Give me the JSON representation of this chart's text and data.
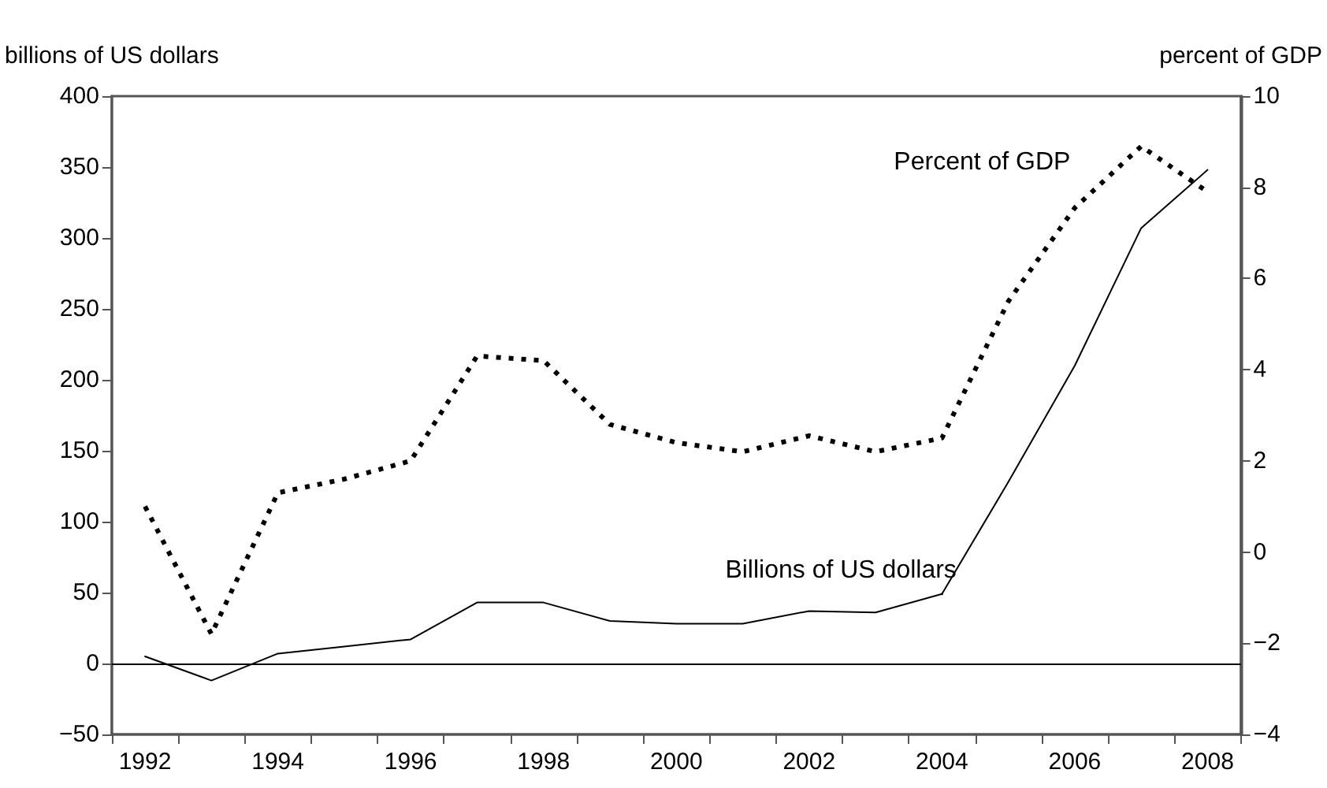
{
  "chart_data": {
    "type": "line",
    "xlabel": null,
    "ylabel": "billions of US dollars",
    "y2label": "percent of GDP",
    "categories": [
      "1992",
      null,
      "1994",
      null,
      "1996",
      null,
      "1998",
      null,
      "2000",
      null,
      "2002",
      null,
      "2004",
      null,
      "2006",
      null,
      "2008"
    ],
    "series": [
      {
        "name": "Billions of US dollars",
        "color": "#000000",
        "line_style": "solid",
        "values": [
          5,
          -12,
          7,
          12,
          17,
          43,
          43,
          30,
          28,
          28,
          37,
          36,
          49,
          128,
          210,
          307,
          348
        ]
      },
      {
        "name": "Percent of GDP",
        "color": "#000000",
        "line_style": "dotted",
        "axis": "y2",
        "values": [
          1.0,
          -1.8,
          1.3,
          1.6,
          2.0,
          4.3,
          4.2,
          2.8,
          2.4,
          2.2,
          2.55,
          2.2,
          2.5,
          5.5,
          7.55,
          8.9,
          7.9
        ]
      }
    ],
    "ylim": [
      -50,
      400
    ],
    "yticks": [
      -50,
      0,
      50,
      100,
      150,
      200,
      250,
      300,
      350,
      400
    ],
    "y2lim": [
      -4,
      10
    ],
    "y2ticks": [
      -4,
      -2,
      0,
      2,
      4,
      6,
      8,
      10
    ],
    "ref_lines": [
      {
        "axis": "y",
        "value": 0,
        "color": "#000000"
      }
    ],
    "grid": false,
    "legend": false,
    "marker": "none"
  }
}
